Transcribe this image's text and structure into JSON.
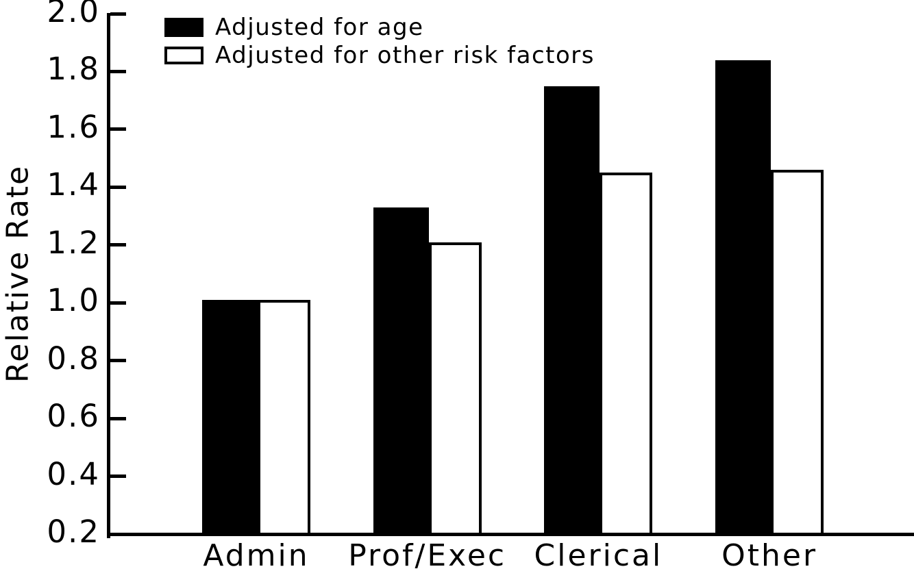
{
  "chart_data": {
    "type": "bar",
    "title": "",
    "xlabel": "",
    "ylabel": "Relative Rate",
    "categories": [
      "Admin",
      "Prof/Exec",
      "Clerical",
      "Other"
    ],
    "series": [
      {
        "name": "Adjusted for age",
        "fill": "#000000",
        "values": [
          1.01,
          1.33,
          1.75,
          1.84
        ]
      },
      {
        "name": "Adjusted for other risk factors",
        "fill": "#ffffff",
        "values": [
          1.01,
          1.21,
          1.45,
          1.46
        ]
      }
    ],
    "ylim": [
      0.2,
      2.0
    ],
    "ytick_step": 0.2,
    "yticks": [
      "2.0",
      "1.8",
      "1.6",
      "1.4",
      "1.2",
      "1.0",
      "0.8",
      "0.6",
      "0.4",
      "0.2"
    ],
    "grid": false,
    "legend_position": "top-left",
    "colors": {
      "bar_filled": "#000000",
      "bar_outline": "#000000",
      "background": "#ffffff",
      "text": "#000000"
    }
  }
}
